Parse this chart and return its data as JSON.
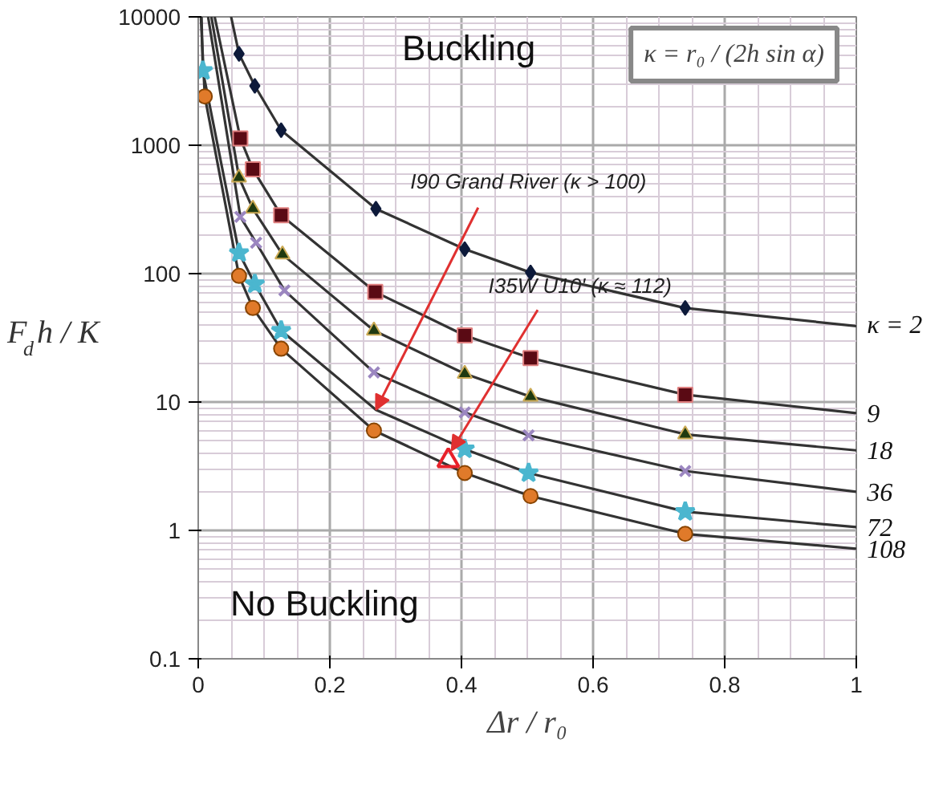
{
  "chart_data": {
    "type": "line",
    "xlabel": "Δr / r₀",
    "ylabel": "F$_{d}$h / K",
    "log": "y",
    "xlim": [
      0,
      1
    ],
    "ylim": [
      0.1,
      10000
    ],
    "xticks": [
      0,
      0.2,
      0.4,
      0.6,
      0.8,
      1
    ],
    "yticks": [
      0.1,
      1,
      10,
      100,
      1000,
      10000
    ],
    "grid": true,
    "line_style": "solid",
    "series": [
      {
        "name": "κ = 2",
        "color": "#333333",
        "marker": "none",
        "x": [
          0.05,
          0.062,
          0.086,
          0.126,
          0.27,
          0.405,
          0.505,
          0.74,
          1
        ],
        "values": [
          10000,
          5150,
          2900,
          1310,
          320,
          155,
          102,
          54,
          39
        ]
      },
      {
        "name": "9",
        "color": "#333333",
        "marker": "none",
        "x": [
          0.025,
          0.064,
          0.083,
          0.126,
          0.269,
          0.405,
          0.505,
          0.74,
          1
        ],
        "values": [
          10000,
          1130,
          650,
          285,
          72,
          33,
          22,
          11.4,
          8.2
        ]
      },
      {
        "name": "18",
        "color": "#333333",
        "marker": "none",
        "x": [
          0.02,
          0.062,
          0.083,
          0.128,
          0.267,
          0.405,
          0.505,
          0.74,
          1
        ],
        "values": [
          10000,
          560,
          320,
          141,
          36,
          16.6,
          11,
          5.6,
          4.2
        ]
      },
      {
        "name": "36",
        "color": "#333333",
        "marker": "none",
        "x": [
          0.015,
          0.064,
          0.088,
          0.131,
          0.267,
          0.405,
          0.502,
          0.74,
          1
        ],
        "values": [
          10000,
          277,
          174,
          74,
          17,
          8.3,
          5.5,
          2.9,
          2
        ]
      },
      {
        "name": "72",
        "color": "#333333",
        "marker": "none",
        "x": [
          0.005,
          0.007,
          0.062,
          0.086,
          0.126,
          0.27,
          0.405,
          0.502,
          0.74,
          1
        ],
        "values": [
          10000,
          3800,
          145,
          83,
          36,
          8.7,
          4.3,
          2.8,
          1.4,
          1.06
        ]
      },
      {
        "name": "108",
        "color": "#333333",
        "marker": "none",
        "x": [
          0.004,
          0.01,
          0.062,
          0.083,
          0.126,
          0.267,
          0.405,
          0.505,
          0.74,
          1
        ],
        "values": [
          10000,
          2400,
          96,
          54,
          26,
          6,
          2.8,
          1.85,
          0.94,
          0.72
        ]
      },
      {
        "type": "scatter",
        "color": "#0d1a3a",
        "marker": "diamond",
        "x": [
          0.062,
          0.086,
          0.126,
          0.27,
          0.405,
          0.505,
          0.74
        ],
        "values": [
          5150,
          2900,
          1310,
          320,
          155,
          102,
          54
        ]
      },
      {
        "type": "scatter",
        "color": "#5a0a14",
        "marker": "square",
        "x": [
          0.064,
          0.083,
          0.126,
          0.269,
          0.405,
          0.505,
          0.74
        ],
        "values": [
          1130,
          650,
          285,
          72,
          33,
          22,
          11.4
        ]
      },
      {
        "type": "scatter",
        "color": "#1f3a10",
        "marker": "triangle",
        "x": [
          0.062,
          0.083,
          0.128,
          0.267,
          0.405,
          0.505,
          0.74
        ],
        "values": [
          560,
          320,
          141,
          36,
          16.6,
          11,
          5.6
        ]
      },
      {
        "type": "scatter",
        "color": "#9b86c0",
        "marker": "cross",
        "x": [
          0.064,
          0.088,
          0.131,
          0.267,
          0.405,
          0.502,
          0.74
        ],
        "values": [
          277,
          174,
          74,
          17,
          8.3,
          5.5,
          2.9
        ]
      },
      {
        "type": "scatter",
        "color": "#4bb6cf",
        "marker": "star",
        "x": [
          0.007,
          0.062,
          0.086,
          0.126,
          0.405,
          0.502,
          0.74
        ],
        "values": [
          3800,
          145,
          83,
          36,
          4.3,
          2.8,
          1.4
        ]
      },
      {
        "type": "scatter",
        "color": "#e07a2a",
        "marker": "circle",
        "x": [
          0.01,
          0.062,
          0.083,
          0.126,
          0.267,
          0.405,
          0.505,
          0.74
        ],
        "values": [
          2400,
          96,
          54,
          26,
          6,
          2.8,
          1.85,
          0.94
        ]
      },
      {
        "type": "scatter",
        "color": "#e8202a",
        "marker": "triangle",
        "x": [
          0.38
        ],
        "values": [
          3.5
        ]
      }
    ],
    "annotations": [
      "Buckling",
      "No Buckling",
      "κ = r₀ / (2h sin α)",
      {
        "text": "I90 Grand River (κ > 100)",
        "x": 0.27,
        "y": 8.7
      },
      {
        "text": "I35W U10' (κ ≈ 112)",
        "x": 0.385,
        "y": 4.2
      }
    ]
  }
}
